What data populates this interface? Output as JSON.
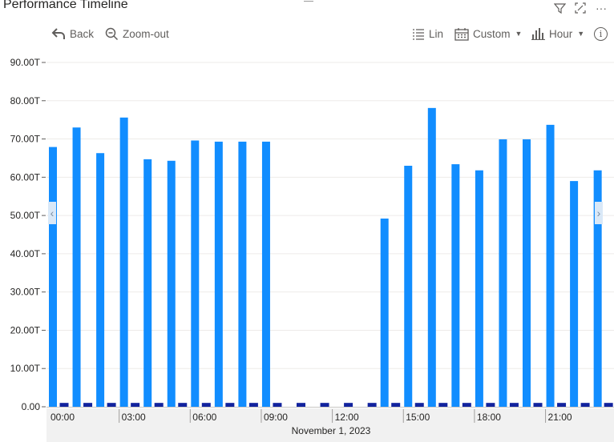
{
  "title": "Performance Timeline",
  "toolbar": {
    "back_label": "Back",
    "zoom_out_label": "Zoom-out",
    "scale_label": "Lin",
    "range_label": "Custom",
    "granularity_label": "Hour"
  },
  "header_icons": [
    "filter-icon",
    "focus-mode-icon",
    "more-options-icon"
  ],
  "colors": {
    "primary_bar": "#118dff",
    "secondary_bar": "#12239e",
    "grid": "#edebe9",
    "axis_band": "#f1f1f1"
  },
  "chart_data": {
    "type": "bar",
    "x_axis_title": "November 1, 2023",
    "x_tick_labels": [
      "00:00",
      "03:00",
      "06:00",
      "09:00",
      "12:00",
      "15:00",
      "18:00",
      "21:00"
    ],
    "y_tick_labels": [
      "0.00",
      "10.00T",
      "20.00T",
      "30.00T",
      "40.00T",
      "50.00T",
      "60.00T",
      "70.00T",
      "80.00T",
      "90.00T"
    ],
    "ylim": [
      0,
      90
    ],
    "y_unit": "T",
    "grid": true,
    "categories": [
      "00:00",
      "01:00",
      "02:00",
      "03:00",
      "04:00",
      "05:00",
      "06:00",
      "07:00",
      "08:00",
      "09:00",
      "10:00",
      "11:00",
      "12:00",
      "13:00",
      "14:00",
      "15:00",
      "16:00",
      "17:00",
      "18:00",
      "19:00",
      "20:00",
      "21:00",
      "22:00",
      "23:00"
    ],
    "series": [
      {
        "color": "#118dff",
        "values": [
          67.9,
          73.0,
          66.3,
          75.6,
          64.7,
          64.3,
          69.6,
          69.3,
          69.3,
          69.3,
          0,
          0,
          0,
          0,
          49.2,
          63.0,
          78.1,
          63.4,
          61.8,
          69.9,
          69.9,
          73.7,
          59.0,
          61.8
        ]
      },
      {
        "color": "#12239e",
        "values": [
          0.8,
          0.8,
          0.8,
          0.8,
          0.8,
          0.8,
          0.8,
          0.8,
          0.8,
          0.8,
          0.8,
          0.8,
          0.8,
          0.8,
          0.8,
          0.8,
          0.8,
          0.8,
          0.8,
          0.8,
          0.8,
          0.8,
          0.8,
          0.8
        ]
      }
    ]
  }
}
